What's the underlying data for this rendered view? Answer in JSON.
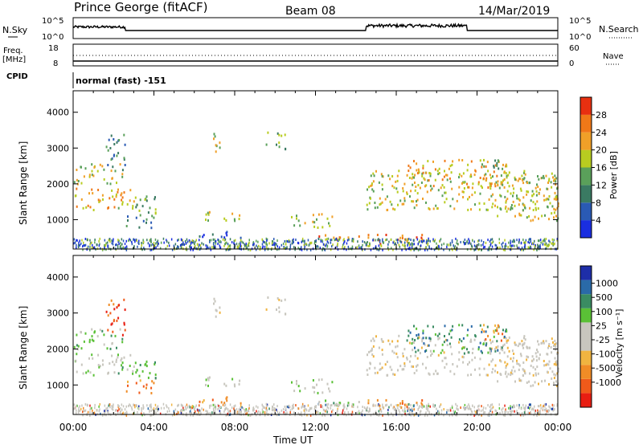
{
  "header": {
    "station": "Prince George (fitACF)",
    "beam": "Beam 08",
    "date": "14/Mar/2019"
  },
  "top_labels": {
    "nsky": "N.Sky",
    "nsearch": "N.Search",
    "freq": "Freq.",
    "mhz": "[MHz]",
    "cpid": "CPID",
    "nave": "Nave",
    "cpid_text": "normal (fast) -151"
  },
  "colors": {
    "power": [
      "#1a2ee0",
      "#2a5ab4",
      "#3a7a62",
      "#5aa05a",
      "#b8cc20",
      "#f0a028",
      "#f07818",
      "#e83010"
    ],
    "velocity": [
      "#e81e12",
      "#f05a1a",
      "#f08c26",
      "#f0b440",
      "#c8c6be",
      "#c8c6be",
      "#5ac036",
      "#3a8c62",
      "#2a6aa8",
      "#1e2ea8"
    ]
  },
  "chart_data": [
    {
      "type": "line",
      "title": "N.Sky / N.Search",
      "left_ticks": [
        "10^5",
        "10^0"
      ],
      "right_ticks": [
        "10^5",
        "10^0"
      ]
    },
    {
      "type": "line",
      "title": "Freq. / Nave",
      "left_ticks": [
        "18",
        "8"
      ],
      "right_ticks": [
        "60",
        "0"
      ]
    },
    {
      "type": "heatmap",
      "xlabel": "Time UT",
      "ylabel": "Slant Range [km]",
      "ytick_labels": [
        "1000",
        "2000",
        "3000",
        "4000"
      ],
      "xtick_labels": [
        "00:00",
        "04:00",
        "08:00",
        "12:00",
        "16:00",
        "20:00",
        "00:00"
      ],
      "colorbar_label": "Power [dB]",
      "colorbar_ticks": [
        "4",
        "8",
        "12",
        "16",
        "20",
        "24",
        "28"
      ]
    },
    {
      "type": "heatmap",
      "xlabel": "Time UT",
      "ylabel": "Slant Range [km]",
      "ytick_labels": [
        "1000",
        "2000",
        "3000",
        "4000"
      ],
      "xtick_labels": [
        "00:00",
        "04:00",
        "08:00",
        "12:00",
        "16:00",
        "20:00",
        "00:00"
      ],
      "colorbar_label": "Velocity [m s⁻¹]",
      "colorbar_ticks": [
        "1000",
        "500",
        "100",
        "25",
        "-25",
        "-100",
        "-500",
        "-1000"
      ]
    }
  ]
}
